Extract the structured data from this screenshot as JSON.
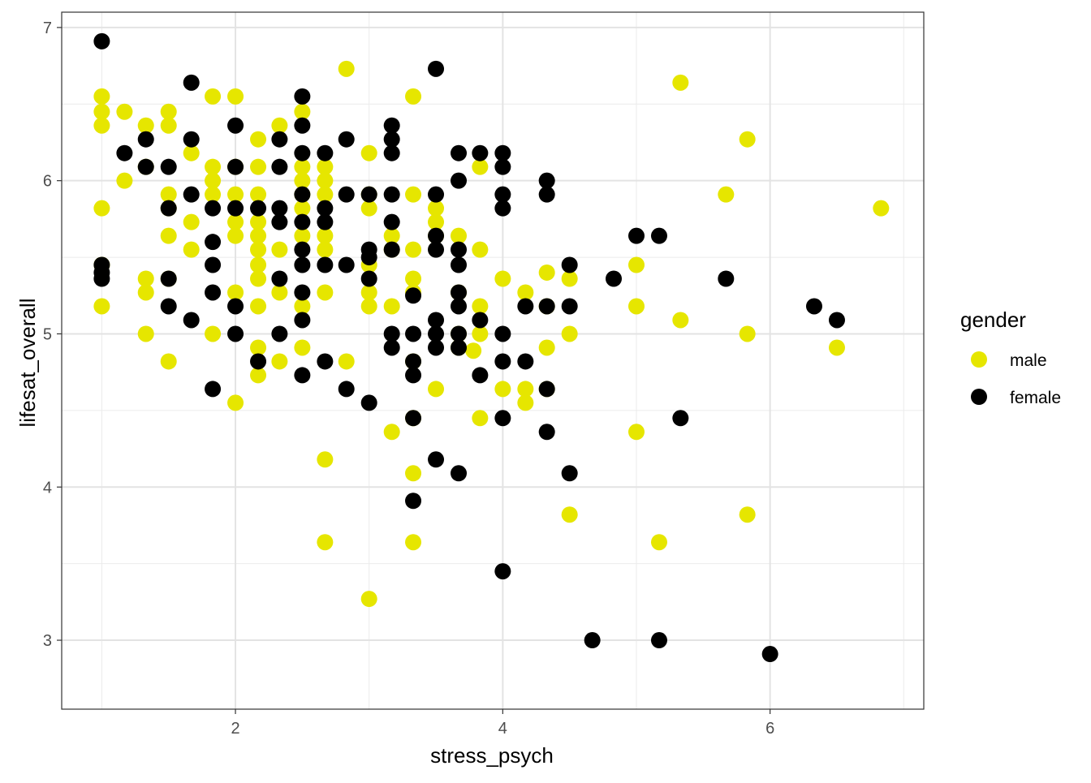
{
  "chart_data": {
    "type": "scatter",
    "xlabel": "stress_psych",
    "ylabel": "lifesat_overall",
    "xlim": [
      0.7,
      7.15
    ],
    "ylim": [
      2.55,
      7.1
    ],
    "x_ticks": [
      2,
      4,
      6
    ],
    "y_ticks": [
      3,
      4,
      5,
      6,
      7
    ],
    "grid": true,
    "legend": {
      "title": "gender",
      "placement": "right",
      "entries": [
        {
          "label": "male",
          "color": "#E6E600"
        },
        {
          "label": "female",
          "color": "#000000"
        }
      ]
    },
    "series": [
      {
        "name": "male",
        "color": "#E6E600",
        "points": [
          [
            1.0,
            6.55
          ],
          [
            1.0,
            6.45
          ],
          [
            1.0,
            6.36
          ],
          [
            1.0,
            5.82
          ],
          [
            1.0,
            5.45
          ],
          [
            1.0,
            5.18
          ],
          [
            1.17,
            6.45
          ],
          [
            1.17,
            6.0
          ],
          [
            1.33,
            6.36
          ],
          [
            1.33,
            6.09
          ],
          [
            1.33,
            5.36
          ],
          [
            1.33,
            5.27
          ],
          [
            1.33,
            5.0
          ],
          [
            1.5,
            6.45
          ],
          [
            1.5,
            6.36
          ],
          [
            1.5,
            5.91
          ],
          [
            1.5,
            5.82
          ],
          [
            1.5,
            5.64
          ],
          [
            1.5,
            5.36
          ],
          [
            1.5,
            4.82
          ],
          [
            1.67,
            6.18
          ],
          [
            1.67,
            5.73
          ],
          [
            1.67,
            5.55
          ],
          [
            1.83,
            6.55
          ],
          [
            1.83,
            6.09
          ],
          [
            1.83,
            6.0
          ],
          [
            1.83,
            5.91
          ],
          [
            1.83,
            5.0
          ],
          [
            2.0,
            6.55
          ],
          [
            2.0,
            6.09
          ],
          [
            2.0,
            5.91
          ],
          [
            2.0,
            5.73
          ],
          [
            2.0,
            5.64
          ],
          [
            2.0,
            5.27
          ],
          [
            2.0,
            4.55
          ],
          [
            2.17,
            6.27
          ],
          [
            2.17,
            6.09
          ],
          [
            2.17,
            5.91
          ],
          [
            2.17,
            5.73
          ],
          [
            2.17,
            5.64
          ],
          [
            2.17,
            5.55
          ],
          [
            2.17,
            5.45
          ],
          [
            2.17,
            5.36
          ],
          [
            2.17,
            5.18
          ],
          [
            2.17,
            4.91
          ],
          [
            2.17,
            4.73
          ],
          [
            2.33,
            6.36
          ],
          [
            2.33,
            5.55
          ],
          [
            2.33,
            5.27
          ],
          [
            2.33,
            4.82
          ],
          [
            2.5,
            6.45
          ],
          [
            2.5,
            6.09
          ],
          [
            2.5,
            6.0
          ],
          [
            2.5,
            5.91
          ],
          [
            2.5,
            5.82
          ],
          [
            2.5,
            5.64
          ],
          [
            2.5,
            5.18
          ],
          [
            2.5,
            4.91
          ],
          [
            2.67,
            6.09
          ],
          [
            2.67,
            6.0
          ],
          [
            2.67,
            5.91
          ],
          [
            2.67,
            5.64
          ],
          [
            2.67,
            5.55
          ],
          [
            2.67,
            5.27
          ],
          [
            2.67,
            4.18
          ],
          [
            2.67,
            3.64
          ],
          [
            2.83,
            6.73
          ],
          [
            2.83,
            4.82
          ],
          [
            3.0,
            6.18
          ],
          [
            3.0,
            5.91
          ],
          [
            3.0,
            5.82
          ],
          [
            3.0,
            5.45
          ],
          [
            3.0,
            5.27
          ],
          [
            3.0,
            5.18
          ],
          [
            3.0,
            3.27
          ],
          [
            3.17,
            5.64
          ],
          [
            3.17,
            5.55
          ],
          [
            3.17,
            5.18
          ],
          [
            3.17,
            4.36
          ],
          [
            3.33,
            6.55
          ],
          [
            3.33,
            5.91
          ],
          [
            3.33,
            5.55
          ],
          [
            3.33,
            5.36
          ],
          [
            3.33,
            5.27
          ],
          [
            3.33,
            4.82
          ],
          [
            3.33,
            4.45
          ],
          [
            3.33,
            4.09
          ],
          [
            3.33,
            3.64
          ],
          [
            3.5,
            5.82
          ],
          [
            3.5,
            5.73
          ],
          [
            3.5,
            5.64
          ],
          [
            3.5,
            4.64
          ],
          [
            3.67,
            5.64
          ],
          [
            3.67,
            5.27
          ],
          [
            3.67,
            5.0
          ],
          [
            3.67,
            4.91
          ],
          [
            3.78,
            4.89
          ],
          [
            3.83,
            6.09
          ],
          [
            3.83,
            5.55
          ],
          [
            3.83,
            5.18
          ],
          [
            3.83,
            5.0
          ],
          [
            3.83,
            4.45
          ],
          [
            4.0,
            5.36
          ],
          [
            4.0,
            4.64
          ],
          [
            4.17,
            5.27
          ],
          [
            4.17,
            4.64
          ],
          [
            4.17,
            4.55
          ],
          [
            4.33,
            5.4
          ],
          [
            4.33,
            5.18
          ],
          [
            4.33,
            4.91
          ],
          [
            4.33,
            4.64
          ],
          [
            4.5,
            5.36
          ],
          [
            4.5,
            5.0
          ],
          [
            4.5,
            3.82
          ],
          [
            5.0,
            5.45
          ],
          [
            5.0,
            5.18
          ],
          [
            5.0,
            4.36
          ],
          [
            5.17,
            3.64
          ],
          [
            5.33,
            6.64
          ],
          [
            5.33,
            5.09
          ],
          [
            5.67,
            5.91
          ],
          [
            5.83,
            6.27
          ],
          [
            5.83,
            5.0
          ],
          [
            5.83,
            3.82
          ],
          [
            6.5,
            4.91
          ],
          [
            6.83,
            5.82
          ]
        ]
      },
      {
        "name": "female",
        "color": "#000000",
        "points": [
          [
            1.0,
            6.91
          ],
          [
            1.0,
            5.45
          ],
          [
            1.0,
            5.4
          ],
          [
            1.0,
            5.36
          ],
          [
            1.17,
            6.18
          ],
          [
            1.33,
            6.27
          ],
          [
            1.33,
            6.09
          ],
          [
            1.5,
            6.09
          ],
          [
            1.5,
            5.82
          ],
          [
            1.5,
            5.36
          ],
          [
            1.5,
            5.18
          ],
          [
            1.67,
            6.64
          ],
          [
            1.67,
            6.27
          ],
          [
            1.67,
            5.91
          ],
          [
            1.67,
            5.09
          ],
          [
            1.83,
            5.82
          ],
          [
            1.83,
            5.6
          ],
          [
            1.83,
            5.45
          ],
          [
            1.83,
            5.27
          ],
          [
            1.83,
            4.64
          ],
          [
            2.0,
            6.36
          ],
          [
            2.0,
            6.09
          ],
          [
            2.0,
            5.82
          ],
          [
            2.0,
            5.18
          ],
          [
            2.0,
            5.0
          ],
          [
            2.17,
            5.82
          ],
          [
            2.17,
            4.82
          ],
          [
            2.33,
            6.27
          ],
          [
            2.33,
            6.09
          ],
          [
            2.33,
            5.82
          ],
          [
            2.33,
            5.73
          ],
          [
            2.33,
            5.36
          ],
          [
            2.33,
            5.0
          ],
          [
            2.5,
            6.55
          ],
          [
            2.5,
            6.36
          ],
          [
            2.5,
            6.18
          ],
          [
            2.5,
            5.91
          ],
          [
            2.5,
            5.73
          ],
          [
            2.5,
            5.55
          ],
          [
            2.5,
            5.45
          ],
          [
            2.5,
            5.27
          ],
          [
            2.5,
            5.09
          ],
          [
            2.5,
            4.73
          ],
          [
            2.67,
            6.18
          ],
          [
            2.67,
            5.82
          ],
          [
            2.67,
            5.73
          ],
          [
            2.67,
            5.45
          ],
          [
            2.67,
            4.82
          ],
          [
            2.83,
            6.27
          ],
          [
            2.83,
            5.91
          ],
          [
            2.83,
            5.45
          ],
          [
            2.83,
            4.64
          ],
          [
            3.0,
            5.91
          ],
          [
            3.0,
            5.55
          ],
          [
            3.0,
            5.5
          ],
          [
            3.0,
            5.36
          ],
          [
            3.0,
            4.55
          ],
          [
            3.17,
            6.36
          ],
          [
            3.17,
            6.27
          ],
          [
            3.17,
            6.18
          ],
          [
            3.17,
            5.91
          ],
          [
            3.17,
            5.73
          ],
          [
            3.17,
            5.55
          ],
          [
            3.17,
            5.0
          ],
          [
            3.17,
            4.91
          ],
          [
            3.33,
            5.25
          ],
          [
            3.33,
            5.0
          ],
          [
            3.33,
            4.82
          ],
          [
            3.33,
            4.73
          ],
          [
            3.33,
            4.45
          ],
          [
            3.33,
            3.91
          ],
          [
            3.5,
            6.73
          ],
          [
            3.5,
            5.91
          ],
          [
            3.5,
            5.64
          ],
          [
            3.5,
            5.55
          ],
          [
            3.5,
            5.09
          ],
          [
            3.5,
            5.0
          ],
          [
            3.5,
            4.91
          ],
          [
            3.5,
            4.18
          ],
          [
            3.67,
            6.18
          ],
          [
            3.67,
            6.0
          ],
          [
            3.67,
            5.55
          ],
          [
            3.67,
            5.45
          ],
          [
            3.67,
            5.27
          ],
          [
            3.67,
            5.18
          ],
          [
            3.67,
            5.0
          ],
          [
            3.67,
            4.91
          ],
          [
            3.67,
            4.09
          ],
          [
            3.83,
            6.18
          ],
          [
            3.83,
            5.09
          ],
          [
            3.83,
            4.73
          ],
          [
            4.0,
            6.18
          ],
          [
            4.0,
            6.09
          ],
          [
            4.0,
            5.91
          ],
          [
            4.0,
            5.82
          ],
          [
            4.0,
            5.0
          ],
          [
            4.0,
            4.82
          ],
          [
            4.0,
            4.45
          ],
          [
            4.0,
            3.45
          ],
          [
            4.17,
            5.18
          ],
          [
            4.17,
            4.82
          ],
          [
            4.33,
            6.0
          ],
          [
            4.33,
            5.91
          ],
          [
            4.33,
            5.18
          ],
          [
            4.33,
            4.64
          ],
          [
            4.33,
            4.36
          ],
          [
            4.5,
            5.45
          ],
          [
            4.5,
            5.18
          ],
          [
            4.5,
            4.09
          ],
          [
            4.67,
            3.0
          ],
          [
            4.83,
            5.36
          ],
          [
            5.0,
            5.64
          ],
          [
            5.17,
            5.64
          ],
          [
            5.17,
            3.0
          ],
          [
            5.33,
            4.45
          ],
          [
            5.67,
            5.36
          ],
          [
            6.0,
            2.91
          ],
          [
            6.33,
            5.18
          ],
          [
            6.5,
            5.09
          ]
        ]
      }
    ]
  }
}
